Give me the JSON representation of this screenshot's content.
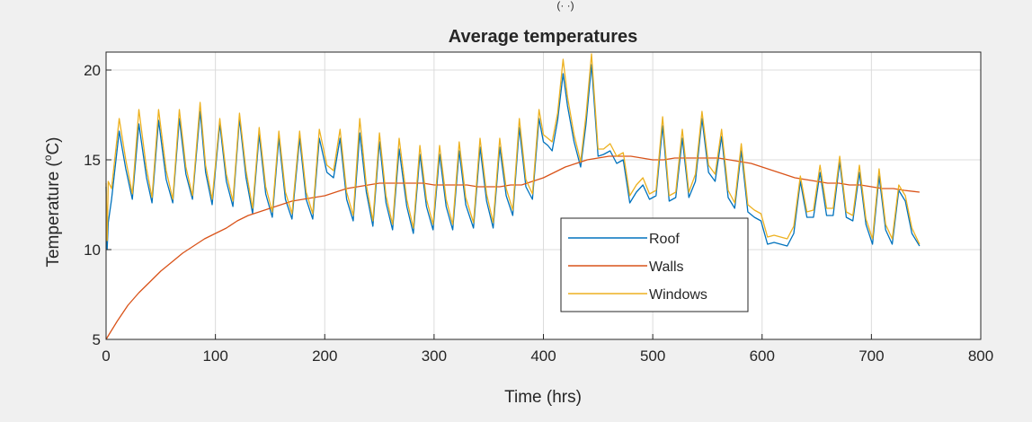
{
  "chart_data": {
    "type": "line",
    "title": "Average temperatures",
    "xlabel": "Time (hrs)",
    "ylabel_main": "Temperature (",
    "ylabel_super": "o",
    "ylabel_end": "C)",
    "xlim": [
      0,
      800
    ],
    "ylim": [
      5,
      21
    ],
    "xticks": [
      0,
      100,
      200,
      300,
      400,
      500,
      600,
      700,
      800
    ],
    "yticks": [
      5,
      10,
      15,
      20
    ],
    "xtick_labels": [
      "0",
      "100",
      "200",
      "300",
      "400",
      "500",
      "600",
      "700",
      "800"
    ],
    "ytick_labels": [
      "5",
      "10",
      "15",
      "20"
    ],
    "grid": true,
    "legend_position": "lower-right",
    "series": [
      {
        "name": "Roof",
        "color": "#0072BD",
        "x": [
          0,
          1,
          2,
          5,
          12,
          18,
          24,
          30,
          37,
          42,
          48,
          55,
          61,
          67,
          73,
          79,
          86,
          91,
          97,
          104,
          110,
          116,
          122,
          128,
          134,
          140,
          146,
          152,
          158,
          164,
          170,
          177,
          183,
          189,
          195,
          202,
          208,
          214,
          220,
          226,
          232,
          238,
          244,
          250,
          256,
          262,
          268,
          275,
          281,
          287,
          293,
          299,
          305,
          311,
          317,
          323,
          329,
          336,
          342,
          348,
          354,
          360,
          366,
          372,
          378,
          384,
          390,
          396,
          400,
          404,
          408,
          413,
          418,
          422,
          428,
          434,
          439,
          444,
          450,
          455,
          461,
          467,
          473,
          479,
          485,
          491,
          497,
          503,
          509,
          515,
          521,
          527,
          533,
          539,
          545,
          551,
          557,
          563,
          569,
          575,
          581,
          587,
          593,
          599,
          605,
          611,
          617,
          623,
          629,
          635,
          641,
          647,
          653,
          659,
          665,
          671,
          677,
          683,
          689,
          695,
          701,
          707,
          713,
          719,
          725,
          731,
          737,
          744
        ],
        "values": [
          13.5,
          10,
          11.5,
          12.8,
          16.6,
          14.5,
          12.8,
          17.0,
          14.0,
          12.6,
          17.2,
          13.9,
          12.6,
          17.3,
          14.2,
          12.8,
          17.7,
          14.3,
          12.5,
          17.0,
          13.8,
          12.4,
          17.3,
          14.0,
          12.0,
          16.4,
          13.1,
          11.8,
          16.2,
          12.8,
          11.7,
          16.2,
          12.8,
          11.7,
          16.2,
          14.3,
          14.0,
          16.2,
          12.8,
          11.6,
          16.5,
          13.2,
          11.3,
          16.0,
          12.6,
          11.1,
          15.6,
          12.4,
          10.9,
          15.3,
          12.4,
          11.1,
          15.3,
          12.4,
          11.1,
          15.5,
          12.5,
          11.2,
          15.7,
          12.7,
          11.2,
          15.7,
          13.0,
          11.9,
          16.8,
          13.5,
          12.8,
          17.3,
          16.0,
          15.8,
          15.5,
          17.2,
          19.8,
          18.0,
          16.0,
          14.6,
          17.0,
          20.3,
          15.2,
          15.3,
          15.5,
          14.8,
          15.0,
          12.6,
          13.2,
          13.6,
          12.8,
          13.0,
          16.9,
          12.7,
          12.9,
          16.2,
          12.9,
          13.8,
          17.3,
          14.3,
          13.8,
          16.3,
          12.9,
          12.3,
          15.5,
          12.1,
          11.8,
          11.6,
          10.3,
          10.4,
          10.3,
          10.2,
          10.9,
          13.8,
          11.8,
          11.8,
          14.3,
          11.9,
          11.9,
          14.9,
          11.8,
          11.6,
          14.3,
          11.4,
          10.3,
          14.1,
          11.1,
          10.3,
          13.3,
          12.7,
          10.9,
          10.2
        ]
      },
      {
        "name": "Walls",
        "color": "#D95319",
        "x": [
          0,
          3,
          10,
          20,
          30,
          40,
          50,
          60,
          70,
          80,
          90,
          100,
          110,
          120,
          130,
          140,
          150,
          160,
          170,
          180,
          190,
          200,
          210,
          220,
          230,
          240,
          250,
          260,
          270,
          280,
          290,
          300,
          310,
          320,
          330,
          340,
          350,
          360,
          370,
          380,
          390,
          400,
          410,
          420,
          430,
          440,
          450,
          460,
          470,
          480,
          490,
          500,
          510,
          520,
          530,
          540,
          550,
          560,
          570,
          580,
          590,
          600,
          610,
          620,
          630,
          640,
          650,
          660,
          670,
          680,
          690,
          700,
          710,
          720,
          730,
          744
        ],
        "values": [
          5.0,
          5.3,
          6.0,
          6.9,
          7.6,
          8.2,
          8.8,
          9.3,
          9.8,
          10.2,
          10.6,
          10.9,
          11.2,
          11.6,
          11.9,
          12.1,
          12.3,
          12.5,
          12.7,
          12.8,
          12.9,
          13.0,
          13.2,
          13.4,
          13.5,
          13.6,
          13.7,
          13.7,
          13.7,
          13.7,
          13.7,
          13.6,
          13.6,
          13.6,
          13.6,
          13.5,
          13.5,
          13.5,
          13.6,
          13.6,
          13.8,
          14.0,
          14.3,
          14.6,
          14.8,
          15.0,
          15.1,
          15.2,
          15.2,
          15.2,
          15.1,
          15.0,
          15.0,
          15.1,
          15.1,
          15.1,
          15.1,
          15.1,
          15.0,
          14.9,
          14.8,
          14.6,
          14.4,
          14.2,
          14.0,
          13.9,
          13.8,
          13.7,
          13.7,
          13.6,
          13.6,
          13.5,
          13.4,
          13.4,
          13.3,
          13.2
        ]
      },
      {
        "name": "Windows",
        "color": "#EDB120",
        "x": [
          0,
          1,
          2,
          5,
          12,
          18,
          24,
          30,
          37,
          42,
          48,
          55,
          61,
          67,
          73,
          79,
          86,
          91,
          97,
          104,
          110,
          116,
          122,
          128,
          134,
          140,
          146,
          152,
          158,
          164,
          170,
          177,
          183,
          189,
          195,
          202,
          208,
          214,
          220,
          226,
          232,
          238,
          244,
          250,
          256,
          262,
          268,
          275,
          281,
          287,
          293,
          299,
          305,
          311,
          317,
          323,
          329,
          336,
          342,
          348,
          354,
          360,
          366,
          372,
          378,
          384,
          390,
          396,
          400,
          404,
          408,
          413,
          418,
          422,
          428,
          434,
          439,
          444,
          450,
          455,
          461,
          467,
          473,
          479,
          485,
          491,
          497,
          503,
          509,
          515,
          521,
          527,
          533,
          539,
          545,
          551,
          557,
          563,
          569,
          575,
          581,
          587,
          593,
          599,
          605,
          611,
          617,
          623,
          629,
          635,
          641,
          647,
          653,
          659,
          665,
          671,
          677,
          683,
          689,
          695,
          701,
          707,
          713,
          719,
          725,
          731,
          737,
          744
        ],
        "values": [
          13.7,
          10.5,
          13.8,
          13.4,
          17.3,
          15.0,
          13.1,
          17.8,
          14.5,
          12.9,
          17.8,
          14.4,
          12.8,
          17.8,
          14.6,
          13.0,
          18.2,
          14.7,
          12.8,
          17.3,
          14.2,
          12.7,
          17.6,
          14.4,
          12.3,
          16.8,
          13.5,
          12.1,
          16.6,
          13.2,
          12.0,
          16.6,
          13.2,
          12.0,
          16.7,
          14.7,
          14.4,
          16.7,
          13.2,
          11.9,
          17.3,
          13.6,
          11.6,
          16.5,
          13.0,
          11.4,
          16.2,
          12.8,
          11.2,
          15.8,
          12.8,
          11.4,
          15.8,
          12.8,
          11.4,
          16.0,
          12.9,
          11.5,
          16.2,
          13.1,
          11.5,
          16.2,
          13.4,
          12.2,
          17.3,
          13.9,
          13.1,
          17.8,
          16.4,
          16.2,
          16.0,
          17.6,
          20.6,
          18.5,
          16.4,
          14.9,
          17.5,
          20.9,
          15.6,
          15.6,
          15.9,
          15.2,
          15.4,
          13.0,
          13.6,
          14.0,
          13.1,
          13.3,
          17.4,
          13.0,
          13.2,
          16.7,
          13.2,
          14.2,
          17.7,
          14.7,
          14.2,
          16.7,
          13.3,
          12.6,
          15.9,
          12.5,
          12.2,
          12.0,
          10.7,
          10.8,
          10.7,
          10.6,
          11.3,
          14.1,
          12.1,
          12.2,
          14.7,
          12.3,
          12.3,
          15.2,
          12.1,
          11.9,
          14.7,
          11.7,
          10.6,
          14.5,
          11.4,
          10.6,
          13.6,
          13.0,
          11.2,
          10.3
        ]
      }
    ],
    "top_clipped_text": "(· ·)"
  }
}
